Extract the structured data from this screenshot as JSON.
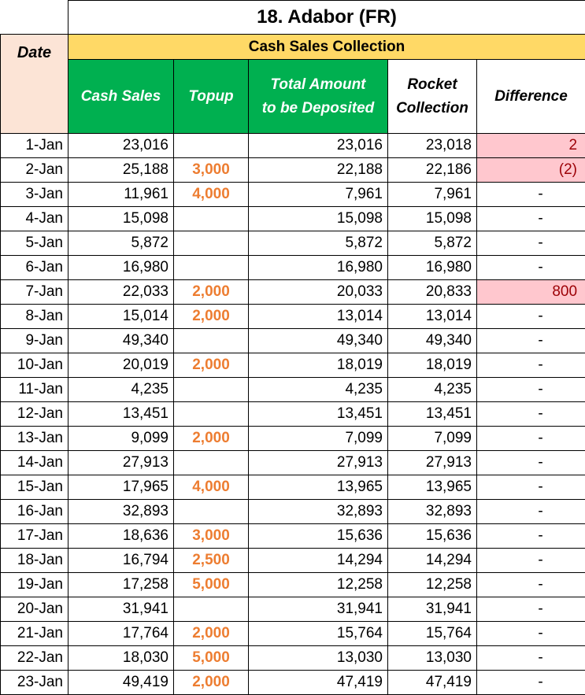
{
  "title": "18. Adabor (FR)",
  "section": "Cash Sales Collection",
  "headers": {
    "date": "Date",
    "cash_sales": "Cash Sales",
    "topup": "Topup",
    "total_line1": "Total Amount",
    "total_line2": "to be Deposited",
    "rocket_line1": "Rocket",
    "rocket_line2": "Collection",
    "difference": "Difference"
  },
  "colors": {
    "band": "#ffd966",
    "date_header": "#fce4d6",
    "green_header": "#00b050",
    "topup_text": "#ed7d31",
    "diff_highlight": "#ffc7ce",
    "diff_highlight_text": "#9c0006"
  },
  "rows": [
    {
      "date": "1-Jan",
      "cash": "23,016",
      "topup": "",
      "total": "23,016",
      "rocket": "23,018",
      "diff": "2",
      "flag": true
    },
    {
      "date": "2-Jan",
      "cash": "25,188",
      "topup": "3,000",
      "total": "22,188",
      "rocket": "22,186",
      "diff": "(2)",
      "flag": true
    },
    {
      "date": "3-Jan",
      "cash": "11,961",
      "topup": "4,000",
      "total": "7,961",
      "rocket": "7,961",
      "diff": "-",
      "flag": false
    },
    {
      "date": "4-Jan",
      "cash": "15,098",
      "topup": "",
      "total": "15,098",
      "rocket": "15,098",
      "diff": "-",
      "flag": false
    },
    {
      "date": "5-Jan",
      "cash": "5,872",
      "topup": "",
      "total": "5,872",
      "rocket": "5,872",
      "diff": "-",
      "flag": false
    },
    {
      "date": "6-Jan",
      "cash": "16,980",
      "topup": "",
      "total": "16,980",
      "rocket": "16,980",
      "diff": "-",
      "flag": false
    },
    {
      "date": "7-Jan",
      "cash": "22,033",
      "topup": "2,000",
      "total": "20,033",
      "rocket": "20,833",
      "diff": "800",
      "flag": true
    },
    {
      "date": "8-Jan",
      "cash": "15,014",
      "topup": "2,000",
      "total": "13,014",
      "rocket": "13,014",
      "diff": "-",
      "flag": false
    },
    {
      "date": "9-Jan",
      "cash": "49,340",
      "topup": "",
      "total": "49,340",
      "rocket": "49,340",
      "diff": "-",
      "flag": false
    },
    {
      "date": "10-Jan",
      "cash": "20,019",
      "topup": "2,000",
      "total": "18,019",
      "rocket": "18,019",
      "diff": "-",
      "flag": false
    },
    {
      "date": "11-Jan",
      "cash": "4,235",
      "topup": "",
      "total": "4,235",
      "rocket": "4,235",
      "diff": "-",
      "flag": false
    },
    {
      "date": "12-Jan",
      "cash": "13,451",
      "topup": "",
      "total": "13,451",
      "rocket": "13,451",
      "diff": "-",
      "flag": false
    },
    {
      "date": "13-Jan",
      "cash": "9,099",
      "topup": "2,000",
      "total": "7,099",
      "rocket": "7,099",
      "diff": "-",
      "flag": false
    },
    {
      "date": "14-Jan",
      "cash": "27,913",
      "topup": "",
      "total": "27,913",
      "rocket": "27,913",
      "diff": "-",
      "flag": false
    },
    {
      "date": "15-Jan",
      "cash": "17,965",
      "topup": "4,000",
      "total": "13,965",
      "rocket": "13,965",
      "diff": "-",
      "flag": false
    },
    {
      "date": "16-Jan",
      "cash": "32,893",
      "topup": "",
      "total": "32,893",
      "rocket": "32,893",
      "diff": "-",
      "flag": false
    },
    {
      "date": "17-Jan",
      "cash": "18,636",
      "topup": "3,000",
      "total": "15,636",
      "rocket": "15,636",
      "diff": "-",
      "flag": false
    },
    {
      "date": "18-Jan",
      "cash": "16,794",
      "topup": "2,500",
      "total": "14,294",
      "rocket": "14,294",
      "diff": "-",
      "flag": false
    },
    {
      "date": "19-Jan",
      "cash": "17,258",
      "topup": "5,000",
      "total": "12,258",
      "rocket": "12,258",
      "diff": "-",
      "flag": false
    },
    {
      "date": "20-Jan",
      "cash": "31,941",
      "topup": "",
      "total": "31,941",
      "rocket": "31,941",
      "diff": "-",
      "flag": false
    },
    {
      "date": "21-Jan",
      "cash": "17,764",
      "topup": "2,000",
      "total": "15,764",
      "rocket": "15,764",
      "diff": "-",
      "flag": false
    },
    {
      "date": "22-Jan",
      "cash": "18,030",
      "topup": "5,000",
      "total": "13,030",
      "rocket": "13,030",
      "diff": "-",
      "flag": false
    },
    {
      "date": "23-Jan",
      "cash": "49,419",
      "topup": "2,000",
      "total": "47,419",
      "rocket": "47,419",
      "diff": "-",
      "flag": false
    }
  ]
}
